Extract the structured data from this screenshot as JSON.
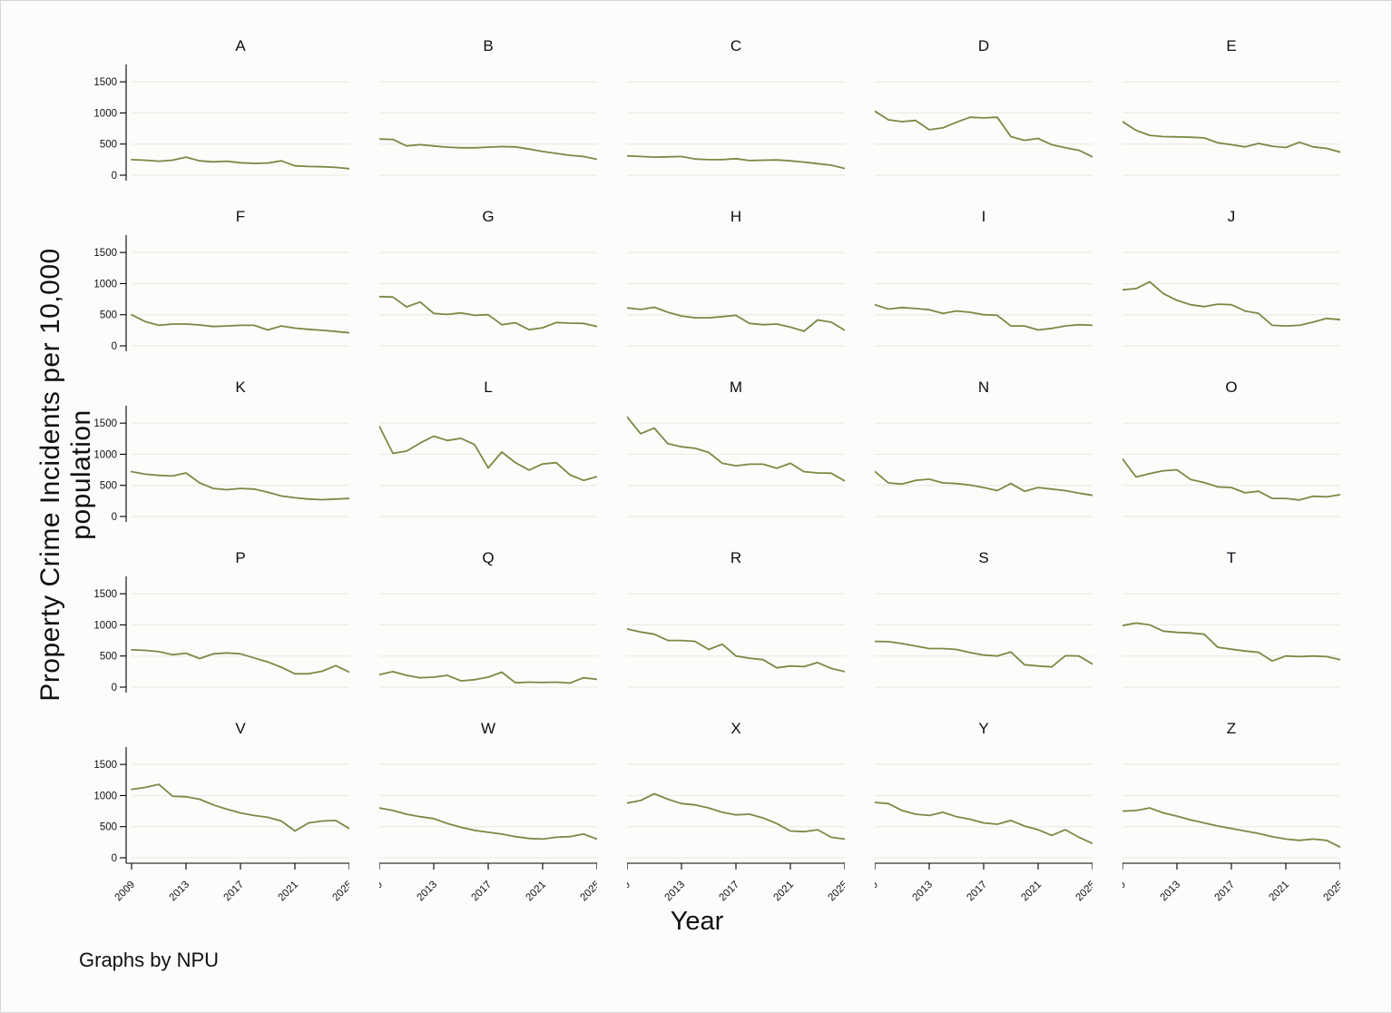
{
  "figure": {
    "ylabel": "Property Crime Incidents per 10,000 population",
    "xlabel": "Year",
    "note": "Graphs by NPU",
    "colors": {
      "line": "#778b45",
      "grid": "#ebebe7",
      "axis": "#000000",
      "text": "#111111",
      "background": "#fcfcfa"
    }
  },
  "chart_data": {
    "type": "line",
    "layout": {
      "rows": 5,
      "cols": 5,
      "grid": "on",
      "x_tick_rotation": -45
    },
    "x": [
      2009,
      2010,
      2011,
      2012,
      2013,
      2014,
      2015,
      2016,
      2017,
      2018,
      2019,
      2020,
      2021,
      2022,
      2023,
      2024,
      2025
    ],
    "x_ticks": [
      2009,
      2013,
      2017,
      2021,
      2025
    ],
    "y_ticks": [
      0,
      500,
      1000,
      1500
    ],
    "ylim": [
      0,
      1750
    ],
    "series": [
      {
        "name": "A",
        "values": [
          250,
          240,
          225,
          240,
          290,
          230,
          215,
          225,
          200,
          190,
          195,
          230,
          150,
          140,
          135,
          125,
          105
        ]
      },
      {
        "name": "B",
        "values": [
          580,
          575,
          470,
          490,
          470,
          450,
          440,
          440,
          450,
          460,
          455,
          420,
          380,
          350,
          320,
          300,
          255
        ]
      },
      {
        "name": "C",
        "values": [
          310,
          300,
          290,
          295,
          300,
          260,
          250,
          250,
          265,
          235,
          240,
          245,
          230,
          210,
          185,
          160,
          110
        ]
      },
      {
        "name": "D",
        "values": [
          1030,
          890,
          860,
          880,
          730,
          760,
          850,
          930,
          920,
          930,
          620,
          560,
          590,
          490,
          440,
          400,
          295
        ]
      },
      {
        "name": "E",
        "values": [
          860,
          720,
          640,
          620,
          615,
          610,
          600,
          520,
          490,
          455,
          510,
          465,
          445,
          530,
          455,
          430,
          370
        ]
      },
      {
        "name": "F",
        "values": [
          500,
          390,
          330,
          350,
          350,
          335,
          310,
          320,
          330,
          330,
          255,
          320,
          285,
          265,
          250,
          230,
          210
        ]
      },
      {
        "name": "G",
        "values": [
          790,
          785,
          625,
          705,
          520,
          505,
          530,
          490,
          500,
          340,
          370,
          260,
          290,
          375,
          365,
          360,
          310
        ]
      },
      {
        "name": "H",
        "values": [
          610,
          585,
          620,
          540,
          480,
          450,
          450,
          470,
          490,
          360,
          340,
          350,
          300,
          235,
          415,
          380,
          250
        ]
      },
      {
        "name": "I",
        "values": [
          660,
          590,
          615,
          600,
          580,
          520,
          560,
          540,
          500,
          490,
          320,
          320,
          255,
          280,
          320,
          340,
          330
        ]
      },
      {
        "name": "J",
        "values": [
          900,
          920,
          1030,
          840,
          730,
          660,
          630,
          670,
          660,
          560,
          520,
          330,
          320,
          330,
          380,
          440,
          420
        ]
      },
      {
        "name": "K",
        "values": [
          720,
          680,
          660,
          650,
          700,
          540,
          450,
          430,
          450,
          440,
          390,
          330,
          300,
          280,
          270,
          280,
          290
        ]
      },
      {
        "name": "L",
        "values": [
          1450,
          1015,
          1050,
          1180,
          1290,
          1220,
          1255,
          1155,
          780,
          1035,
          865,
          745,
          845,
          865,
          670,
          580,
          640
        ]
      },
      {
        "name": "M",
        "values": [
          1600,
          1330,
          1420,
          1170,
          1120,
          1095,
          1030,
          855,
          815,
          840,
          840,
          775,
          855,
          720,
          700,
          695,
          570
        ]
      },
      {
        "name": "N",
        "values": [
          725,
          540,
          520,
          580,
          600,
          540,
          530,
          505,
          465,
          415,
          530,
          405,
          465,
          440,
          415,
          375,
          340
        ]
      },
      {
        "name": "O",
        "values": [
          925,
          635,
          690,
          735,
          750,
          595,
          545,
          475,
          465,
          380,
          405,
          290,
          290,
          265,
          325,
          315,
          350
        ]
      },
      {
        "name": "P",
        "values": [
          600,
          590,
          570,
          520,
          545,
          460,
          535,
          550,
          535,
          470,
          405,
          320,
          215,
          215,
          255,
          345,
          240
        ]
      },
      {
        "name": "Q",
        "values": [
          200,
          250,
          190,
          150,
          160,
          190,
          100,
          120,
          160,
          240,
          70,
          80,
          75,
          80,
          65,
          150,
          125
        ]
      },
      {
        "name": "R",
        "values": [
          935,
          885,
          850,
          750,
          750,
          735,
          605,
          690,
          500,
          465,
          440,
          310,
          340,
          330,
          395,
          300,
          250
        ]
      },
      {
        "name": "S",
        "values": [
          735,
          730,
          700,
          660,
          620,
          620,
          605,
          555,
          515,
          500,
          565,
          360,
          340,
          325,
          505,
          500,
          370
        ]
      },
      {
        "name": "T",
        "values": [
          990,
          1030,
          1000,
          900,
          880,
          870,
          850,
          640,
          610,
          580,
          560,
          420,
          500,
          490,
          500,
          490,
          440
        ]
      },
      {
        "name": "V",
        "values": [
          1100,
          1130,
          1180,
          990,
          980,
          940,
          850,
          780,
          720,
          680,
          650,
          590,
          430,
          560,
          590,
          600,
          470
        ]
      },
      {
        "name": "W",
        "values": [
          800,
          760,
          700,
          660,
          630,
          550,
          490,
          440,
          410,
          380,
          340,
          310,
          300,
          330,
          340,
          380,
          300
        ]
      },
      {
        "name": "X",
        "values": [
          880,
          920,
          1030,
          940,
          870,
          850,
          800,
          730,
          690,
          700,
          640,
          550,
          430,
          420,
          450,
          330,
          300
        ]
      },
      {
        "name": "Y",
        "values": [
          890,
          870,
          760,
          700,
          680,
          730,
          660,
          620,
          560,
          540,
          600,
          510,
          450,
          360,
          450,
          330,
          230
        ]
      },
      {
        "name": "Z",
        "values": [
          750,
          760,
          800,
          720,
          670,
          610,
          560,
          510,
          470,
          430,
          390,
          340,
          300,
          280,
          300,
          280,
          170
        ]
      }
    ]
  }
}
